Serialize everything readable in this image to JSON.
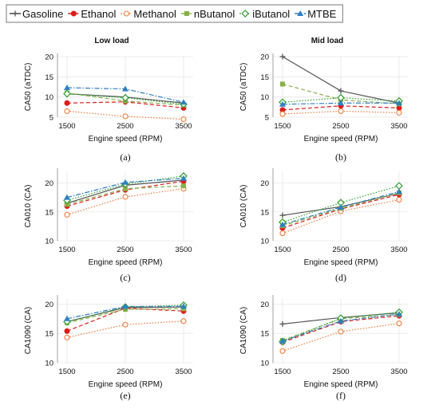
{
  "legend": {
    "series": [
      {
        "name": "Gasoline",
        "color": "#555555",
        "marker": "plus",
        "dash": "solid"
      },
      {
        "name": "Ethanol",
        "color": "#dd1c1c",
        "marker": "filled-circle",
        "dash": "dashed"
      },
      {
        "name": "Methanol",
        "color": "#f07a3c",
        "marker": "open-circle",
        "dash": "dotted"
      },
      {
        "name": "nButanol",
        "color": "#88b04b",
        "marker": "square",
        "dash": "dashed"
      },
      {
        "name": "iButanol",
        "color": "#2e9e2e",
        "marker": "diamond",
        "dash": "dotted"
      },
      {
        "name": "MTBE",
        "color": "#2f7fc1",
        "marker": "triangle",
        "dash": "dashdot"
      }
    ]
  },
  "columns": {
    "left": "Low load",
    "right": "Mid load"
  },
  "chart_data": [
    {
      "type": "line",
      "panel": "(a)",
      "column": "Low load",
      "xlabel": "Engine speed (RPM)",
      "ylabel": "CA50 (aTDC)",
      "x": [
        1500,
        2500,
        3500
      ],
      "ylim": [
        5,
        20
      ],
      "yticks": [
        5,
        10,
        15,
        20
      ],
      "series": [
        {
          "name": "Gasoline",
          "values": [
            10.8,
            10.0,
            8.5
          ]
        },
        {
          "name": "Ethanol",
          "values": [
            8.5,
            8.8,
            7.3
          ]
        },
        {
          "name": "Methanol",
          "values": [
            6.5,
            5.2,
            4.5
          ]
        },
        {
          "name": "nButanol",
          "values": [
            11.0,
            9.0,
            8.0
          ]
        },
        {
          "name": "iButanol",
          "values": [
            10.8,
            9.8,
            8.2
          ]
        },
        {
          "name": "MTBE",
          "values": [
            12.3,
            12.0,
            8.7
          ]
        }
      ]
    },
    {
      "type": "line",
      "panel": "(b)",
      "column": "Mid load",
      "xlabel": "Engine speed (RPM)",
      "ylabel": "CA50 (aTDC)",
      "x": [
        1500,
        2500,
        3500
      ],
      "ylim": [
        5,
        20
      ],
      "yticks": [
        5,
        10,
        15,
        20
      ],
      "series": [
        {
          "name": "Gasoline",
          "values": [
            20.0,
            11.5,
            8.5
          ]
        },
        {
          "name": "Ethanol",
          "values": [
            6.8,
            7.8,
            7.3
          ]
        },
        {
          "name": "Methanol",
          "values": [
            5.8,
            6.5,
            6.1
          ]
        },
        {
          "name": "nButanol",
          "values": [
            13.2,
            9.3,
            8.3
          ]
        },
        {
          "name": "iButanol",
          "values": [
            8.7,
            9.8,
            9.0
          ]
        },
        {
          "name": "MTBE",
          "values": [
            8.2,
            8.5,
            8.5
          ]
        }
      ]
    },
    {
      "type": "line",
      "panel": "(c)",
      "column": "Low load",
      "xlabel": "Engine speed (RPM)",
      "ylabel": "CA010 (CA)",
      "x": [
        1500,
        2500,
        3500
      ],
      "ylim": [
        10,
        22
      ],
      "yticks": [
        10,
        15,
        20
      ],
      "series": [
        {
          "name": "Gasoline",
          "values": [
            16.5,
            19.6,
            20.5
          ]
        },
        {
          "name": "Ethanol",
          "values": [
            16.0,
            18.8,
            20.3
          ]
        },
        {
          "name": "Methanol",
          "values": [
            14.5,
            17.6,
            19.0
          ]
        },
        {
          "name": "nButanol",
          "values": [
            16.3,
            19.0,
            19.5
          ]
        },
        {
          "name": "iButanol",
          "values": [
            17.0,
            19.8,
            21.2
          ]
        },
        {
          "name": "MTBE",
          "values": [
            17.5,
            20.1,
            20.8
          ]
        }
      ]
    },
    {
      "type": "line",
      "panel": "(d)",
      "column": "Mid load",
      "xlabel": "Engine speed (RPM)",
      "ylabel": "CA010 (CA)",
      "x": [
        1500,
        2500,
        3500
      ],
      "ylim": [
        10,
        22
      ],
      "yticks": [
        10,
        15,
        20
      ],
      "series": [
        {
          "name": "Gasoline",
          "values": [
            14.4,
            15.9,
            18.2
          ]
        },
        {
          "name": "Ethanol",
          "values": [
            12.2,
            15.5,
            18.0
          ]
        },
        {
          "name": "Methanol",
          "values": [
            11.3,
            15.1,
            17.1
          ]
        },
        {
          "name": "nButanol",
          "values": [
            12.6,
            15.6,
            18.3
          ]
        },
        {
          "name": "iButanol",
          "values": [
            13.2,
            16.6,
            19.5
          ]
        },
        {
          "name": "MTBE",
          "values": [
            12.8,
            15.8,
            18.5
          ]
        }
      ]
    },
    {
      "type": "line",
      "panel": "(e)",
      "column": "Low load",
      "xlabel": "Engine speed (RPM)",
      "ylabel": "CA1090 (CA)",
      "x": [
        1500,
        2500,
        3500
      ],
      "ylim": [
        10,
        21
      ],
      "yticks": [
        10,
        15,
        20
      ],
      "series": [
        {
          "name": "Gasoline",
          "values": [
            17.0,
            19.4,
            19.5
          ]
        },
        {
          "name": "Ethanol",
          "values": [
            15.4,
            19.3,
            18.8
          ]
        },
        {
          "name": "Methanol",
          "values": [
            14.3,
            16.5,
            17.1
          ]
        },
        {
          "name": "nButanol",
          "values": [
            16.8,
            19.1,
            19.2
          ]
        },
        {
          "name": "iButanol",
          "values": [
            17.0,
            19.5,
            19.8
          ]
        },
        {
          "name": "MTBE",
          "values": [
            17.5,
            19.6,
            19.6
          ]
        }
      ]
    },
    {
      "type": "line",
      "panel": "(f)",
      "column": "Mid load",
      "xlabel": "Engine speed (RPM)",
      "ylabel": "CA1090 (CA)",
      "x": [
        1500,
        2500,
        3500
      ],
      "ylim": [
        10,
        21
      ],
      "yticks": [
        10,
        15,
        20
      ],
      "series": [
        {
          "name": "Gasoline",
          "values": [
            16.6,
            17.7,
            18.5
          ]
        },
        {
          "name": "Ethanol",
          "values": [
            13.5,
            17.0,
            18.0
          ]
        },
        {
          "name": "Methanol",
          "values": [
            12.0,
            15.3,
            16.7
          ]
        },
        {
          "name": "nButanol",
          "values": [
            13.8,
            17.5,
            18.2
          ]
        },
        {
          "name": "iButanol",
          "values": [
            13.6,
            17.6,
            18.6
          ]
        },
        {
          "name": "MTBE",
          "values": [
            13.7,
            17.1,
            18.3
          ]
        }
      ]
    }
  ]
}
